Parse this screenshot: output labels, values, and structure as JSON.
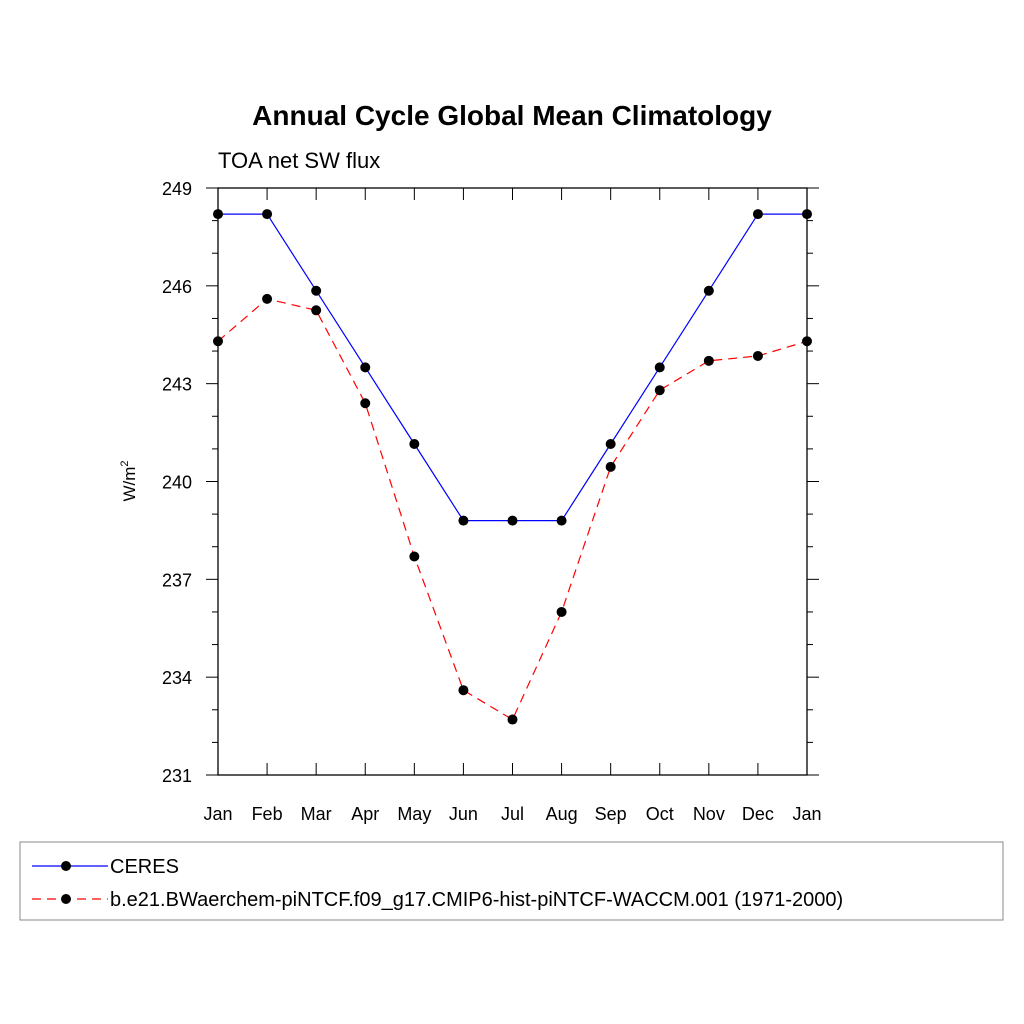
{
  "chart_data": {
    "type": "line",
    "title": "Annual Cycle Global Mean Climatology",
    "subtitle": "TOA net SW flux",
    "ylabel": "W/m",
    "ylabel_sup": "2",
    "ylim": [
      231,
      249
    ],
    "yticks": [
      "231",
      "234",
      "237",
      "240",
      "243",
      "246",
      "249"
    ],
    "categories": [
      "Jan",
      "Feb",
      "Mar",
      "Apr",
      "May",
      "Jun",
      "Jul",
      "Aug",
      "Sep",
      "Oct",
      "Nov",
      "Dec",
      "Jan"
    ],
    "grid": false,
    "legend_position": "bottom",
    "series": [
      {
        "name": "CERES",
        "color": "#0000ff",
        "dash": "solid",
        "marker": "filled-circle",
        "values": [
          248.2,
          248.2,
          245.85,
          243.5,
          241.15,
          238.8,
          238.8,
          238.8,
          241.15,
          243.5,
          245.85,
          248.2,
          248.2
        ]
      },
      {
        "name": "b.e21.BWaerchem-piNTCF.f09_g17.CMIP6-hist-piNTCF-WACCM.001 (1971-2000)",
        "color": "#ff0000",
        "dash": "dashed",
        "marker": "filled-circle",
        "values": [
          244.3,
          245.6,
          245.25,
          242.4,
          237.7,
          233.6,
          232.7,
          236.0,
          240.45,
          242.8,
          243.7,
          243.85,
          244.3
        ]
      }
    ]
  }
}
